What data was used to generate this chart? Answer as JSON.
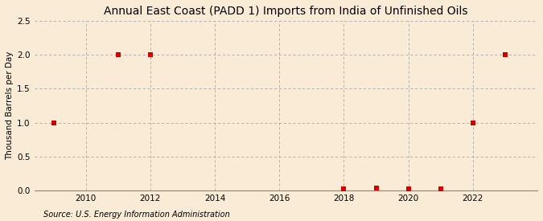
{
  "title": "Annual East Coast (PADD 1) Imports from India of Unfinished Oils",
  "ylabel": "Thousand Barrels per Day",
  "source": "Source: U.S. Energy Information Administration",
  "background_color": "#faebd7",
  "plot_bg_color": "#faebd7",
  "data_years": [
    2009,
    2011,
    2012,
    2018,
    2019,
    2020,
    2021,
    2022,
    2023
  ],
  "data_values": [
    1.0,
    2.0,
    2.0,
    0.02,
    0.03,
    0.02,
    0.02,
    1.0,
    2.0
  ],
  "xlim": [
    2008.4,
    2024.0
  ],
  "ylim": [
    0.0,
    2.5
  ],
  "yticks": [
    0.0,
    0.5,
    1.0,
    1.5,
    2.0,
    2.5
  ],
  "xticks": [
    2010,
    2012,
    2014,
    2016,
    2018,
    2020,
    2022
  ],
  "marker_color": "#cc0000",
  "marker_size": 4,
  "grid_color": "#aaaaaa",
  "title_fontsize": 10,
  "label_fontsize": 7.5,
  "tick_fontsize": 7.5,
  "source_fontsize": 7
}
